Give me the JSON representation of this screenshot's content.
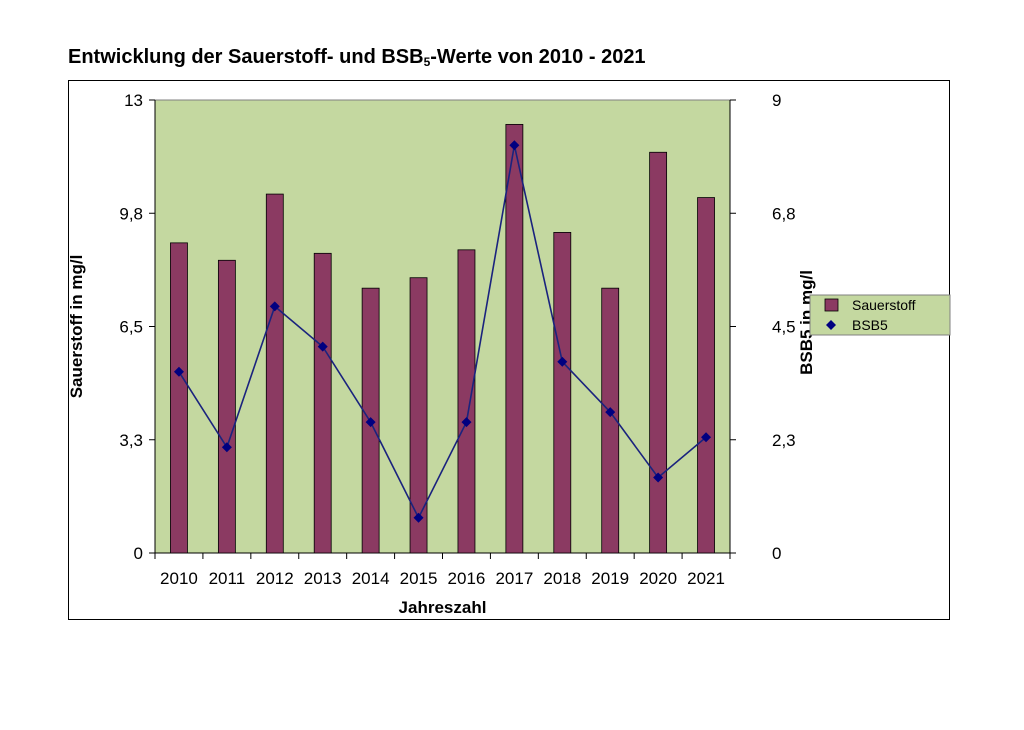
{
  "title_main": "Entwicklung der Sauerstoff- und BSB",
  "title_sub": "5",
  "title_tail": "-Werte von 2010 - 2021",
  "colors": {
    "plot_bg": "#c4d8a0",
    "bar_fill": "#8b3a62",
    "line": "#1a237e",
    "marker": "#000080"
  },
  "chart_data": {
    "type": "bar",
    "title": "Entwicklung der Sauerstoff- und BSB5-Werte von 2010 - 2021",
    "xlabel": "Jahreszahl",
    "ylabel": "Sauerstoff in mg/l",
    "y2label": "BSB5 in mg/l",
    "categories": [
      "2010",
      "2011",
      "2012",
      "2013",
      "2014",
      "2015",
      "2016",
      "2017",
      "2018",
      "2019",
      "2020",
      "2021"
    ],
    "ylim": [
      0,
      13
    ],
    "y2lim": [
      0,
      9
    ],
    "yticks": [
      "0",
      "3,3",
      "6,5",
      "9,8",
      "13"
    ],
    "y2ticks": [
      "0",
      "2,3",
      "4,5",
      "6,8",
      "9"
    ],
    "legend_position": "right",
    "series": [
      {
        "name": "Sauerstoff",
        "type": "bar",
        "axis": "left",
        "values": [
          8.9,
          8.4,
          10.3,
          8.6,
          7.6,
          7.9,
          8.7,
          12.3,
          9.2,
          7.6,
          11.5,
          10.2
        ]
      },
      {
        "name": "BSB5",
        "type": "line",
        "axis": "right",
        "values": [
          3.6,
          2.1,
          4.9,
          4.1,
          2.6,
          0.7,
          2.6,
          8.1,
          3.8,
          2.8,
          1.5,
          2.3
        ]
      }
    ]
  }
}
